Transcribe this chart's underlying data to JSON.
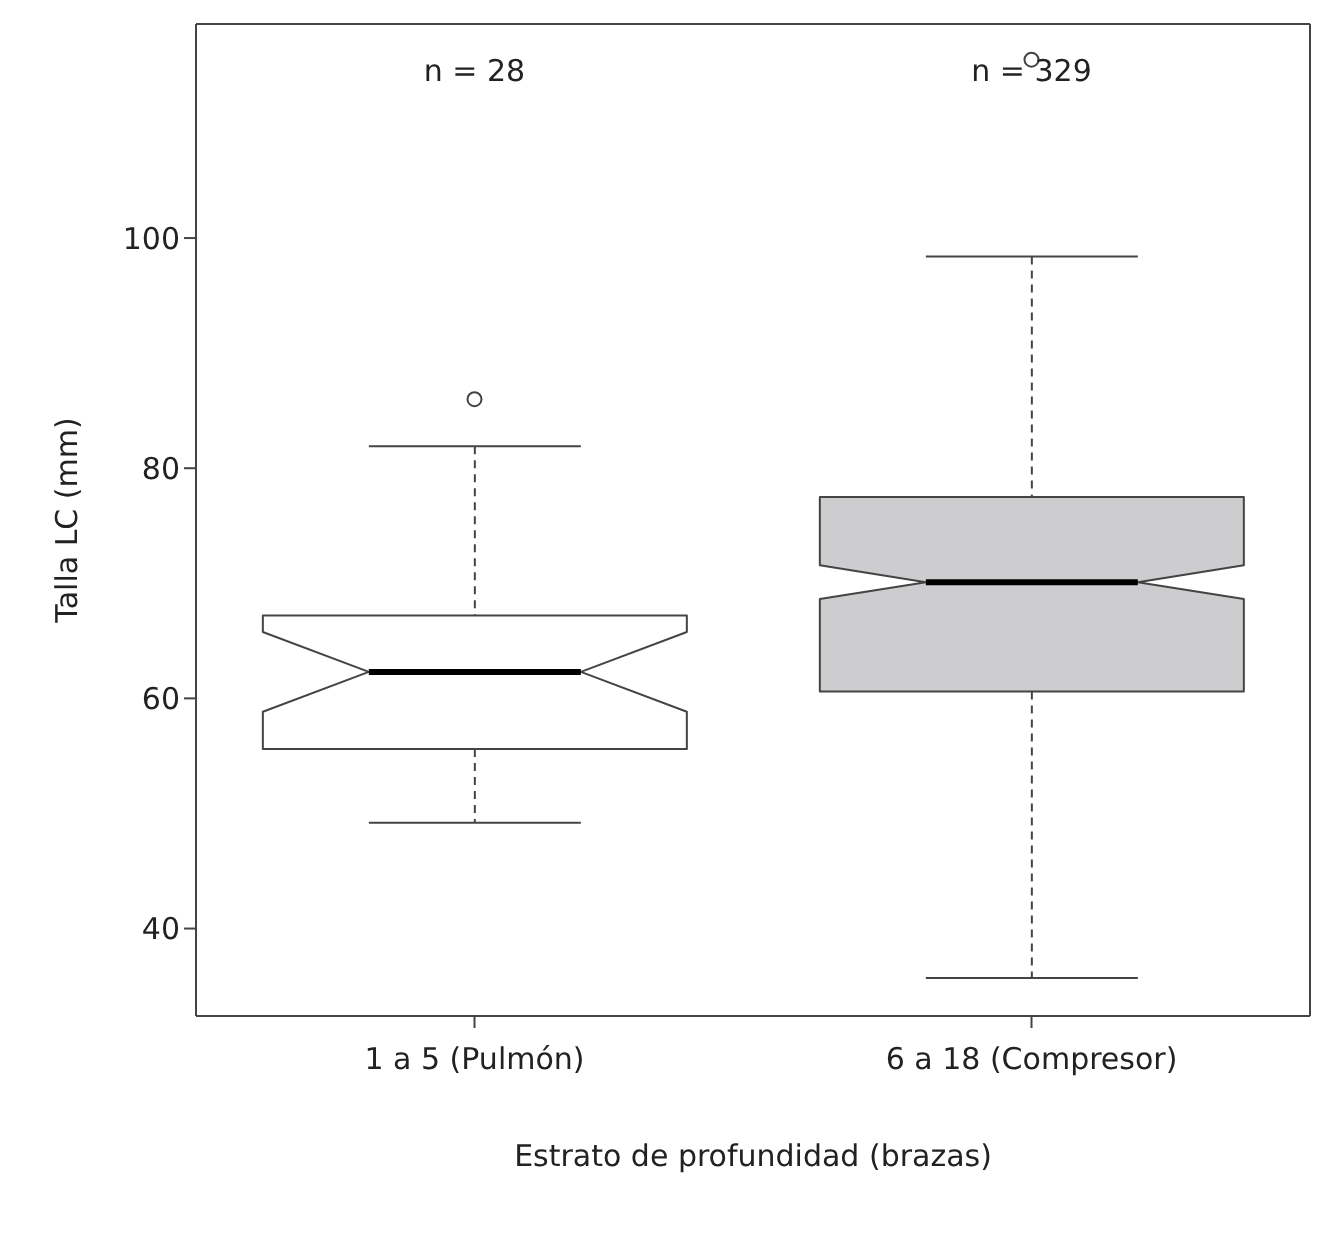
{
  "chart_data": {
    "type": "box",
    "xlabel": "Estrato de profundidad (brazas)",
    "ylabel": "Talla LC (mm)",
    "categories": [
      "1 a 5 (Pulmón)",
      "6 a 18 (Compresor)"
    ],
    "colors": [
      "#ffffff",
      "#cdcdcf"
    ],
    "boxes": [
      {
        "low": 49.2,
        "q1": 55.6,
        "median": 62.3,
        "q3": 67.2,
        "high": 81.9,
        "outliers": [
          86.0
        ]
      },
      {
        "low": 35.7,
        "q1": 60.6,
        "median": 70.1,
        "q3": 77.5,
        "high": 98.4,
        "outliers": [
          115.5
        ]
      }
    ],
    "annotations": [
      "n = 28",
      "n = 329"
    ],
    "ylim": [
      32.4,
      118.6
    ],
    "yticks": [
      40,
      60,
      80,
      100
    ]
  }
}
